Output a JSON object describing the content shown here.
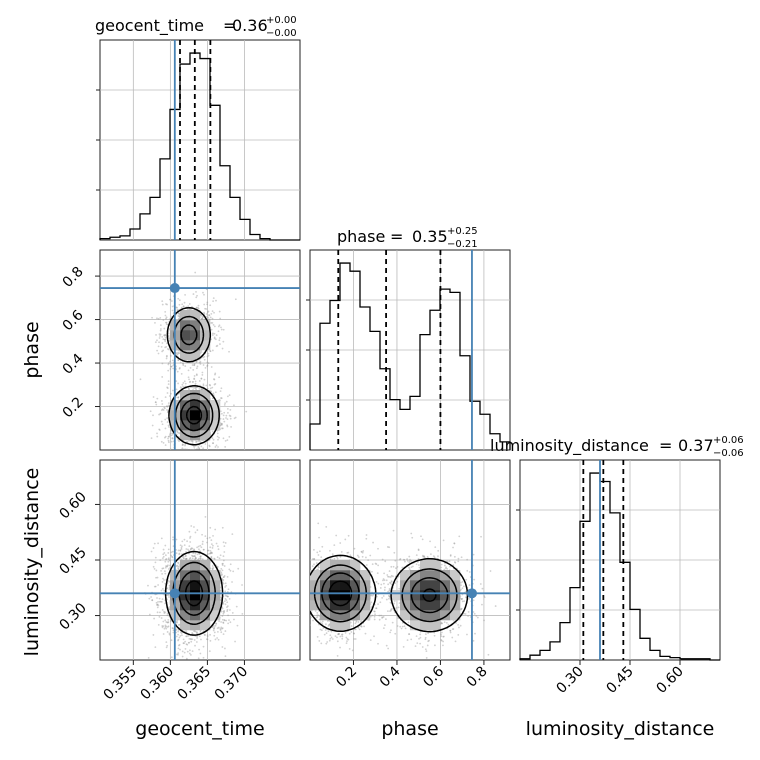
{
  "chart_data": {
    "type": "corner",
    "parameters": [
      "geocent_time",
      "phase",
      "luminosity_distance"
    ],
    "truths": {
      "geocent_time": 0.3606,
      "phase": 0.745,
      "luminosity_distance": 0.36
    },
    "truth_color": "#4682b4",
    "panels": [
      {
        "param": "geocent_time",
        "type": "histogram",
        "title": {
          "name": "geocent_time",
          "value": "0.36",
          "plus": "+0.00",
          "minus": "−0.00"
        },
        "quantiles": [
          0.3613,
          0.3633,
          0.3654
        ],
        "range": [
          0.3505,
          0.3775
        ],
        "xticks": [
          0.355,
          0.36,
          0.365,
          0.37
        ],
        "xtick_labels": [
          "0.355",
          "0.360",
          "0.365",
          "0.370"
        ],
        "bin_edges_start": 0.3505,
        "bin_width": 0.00135,
        "counts": [
          1,
          2,
          3,
          8,
          19,
          31,
          59,
          95,
          128,
          136,
          132,
          98,
          54,
          31,
          15,
          4,
          1,
          0,
          0,
          0
        ]
      },
      {
        "param": "phase",
        "type": "histogram",
        "title": {
          "name": "phase",
          "value": "0.35",
          "plus": "+0.25",
          "minus": "−0.21"
        },
        "quantiles": [
          0.13,
          0.35,
          0.6
        ],
        "range": [
          0.0,
          0.92
        ],
        "xticks": [
          0.2,
          0.4,
          0.6,
          0.8
        ],
        "xtick_labels": [
          "0.2",
          "0.4",
          "0.6",
          "0.8"
        ],
        "bin_edges_start": 0.0,
        "bin_width": 0.046,
        "counts": [
          16,
          78,
          92,
          115,
          110,
          88,
          73,
          50,
          31,
          25,
          33,
          71,
          86,
          99,
          97,
          58,
          30,
          22,
          10,
          5
        ]
      },
      {
        "param": "luminosity_distance",
        "type": "histogram",
        "title": {
          "name": "luminosity_distance",
          "value": "0.37",
          "plus": "+0.06",
          "minus": "−0.06"
        },
        "quantiles": [
          0.31,
          0.37,
          0.43
        ],
        "range": [
          0.12,
          0.72
        ],
        "xticks": [
          0.3,
          0.45,
          0.6
        ],
        "xtick_labels": [
          "0.30",
          "0.45",
          "0.60"
        ],
        "bin_edges_start": 0.12,
        "bin_width": 0.03,
        "counts": [
          1,
          4,
          8,
          15,
          31,
          60,
          115,
          155,
          148,
          122,
          81,
          42,
          18,
          8,
          3,
          2,
          1,
          1,
          1,
          0
        ]
      },
      {
        "x": "geocent_time",
        "y": "phase",
        "type": "2d-density",
        "ylim": [
          0.0,
          0.92
        ],
        "yticks": [
          0.2,
          0.4,
          0.6,
          0.8
        ],
        "ytick_labels": [
          "0.2",
          "0.4",
          "0.6",
          "0.8"
        ],
        "modes": [
          {
            "x": 0.3632,
            "y": 0.16,
            "sx": 0.0015,
            "sy": 0.06,
            "w": 0.6
          },
          {
            "x": 0.3625,
            "y": 0.53,
            "sx": 0.0014,
            "sy": 0.06,
            "w": 0.4
          }
        ]
      },
      {
        "x": "geocent_time",
        "y": "luminosity_distance",
        "type": "2d-density",
        "ylim": [
          0.18,
          0.72
        ],
        "yticks": [
          0.3,
          0.45,
          0.6
        ],
        "ytick_labels": [
          "0.30",
          "0.45",
          "0.60"
        ],
        "modes": [
          {
            "x": 0.3632,
            "y": 0.36,
            "sx": 0.0017,
            "sy": 0.05,
            "w": 1.0
          }
        ]
      },
      {
        "x": "phase",
        "y": "luminosity_distance",
        "type": "2d-density",
        "modes": [
          {
            "x": 0.14,
            "y": 0.36,
            "sx": 0.07,
            "sy": 0.045,
            "w": 0.55
          },
          {
            "x": 0.55,
            "y": 0.355,
            "sx": 0.08,
            "sy": 0.045,
            "w": 0.45
          }
        ]
      }
    ],
    "axis_labels": {
      "x": [
        "geocent_time",
        "phase",
        "luminosity_distance"
      ],
      "y": [
        "phase",
        "luminosity_distance"
      ]
    },
    "grid": true
  }
}
